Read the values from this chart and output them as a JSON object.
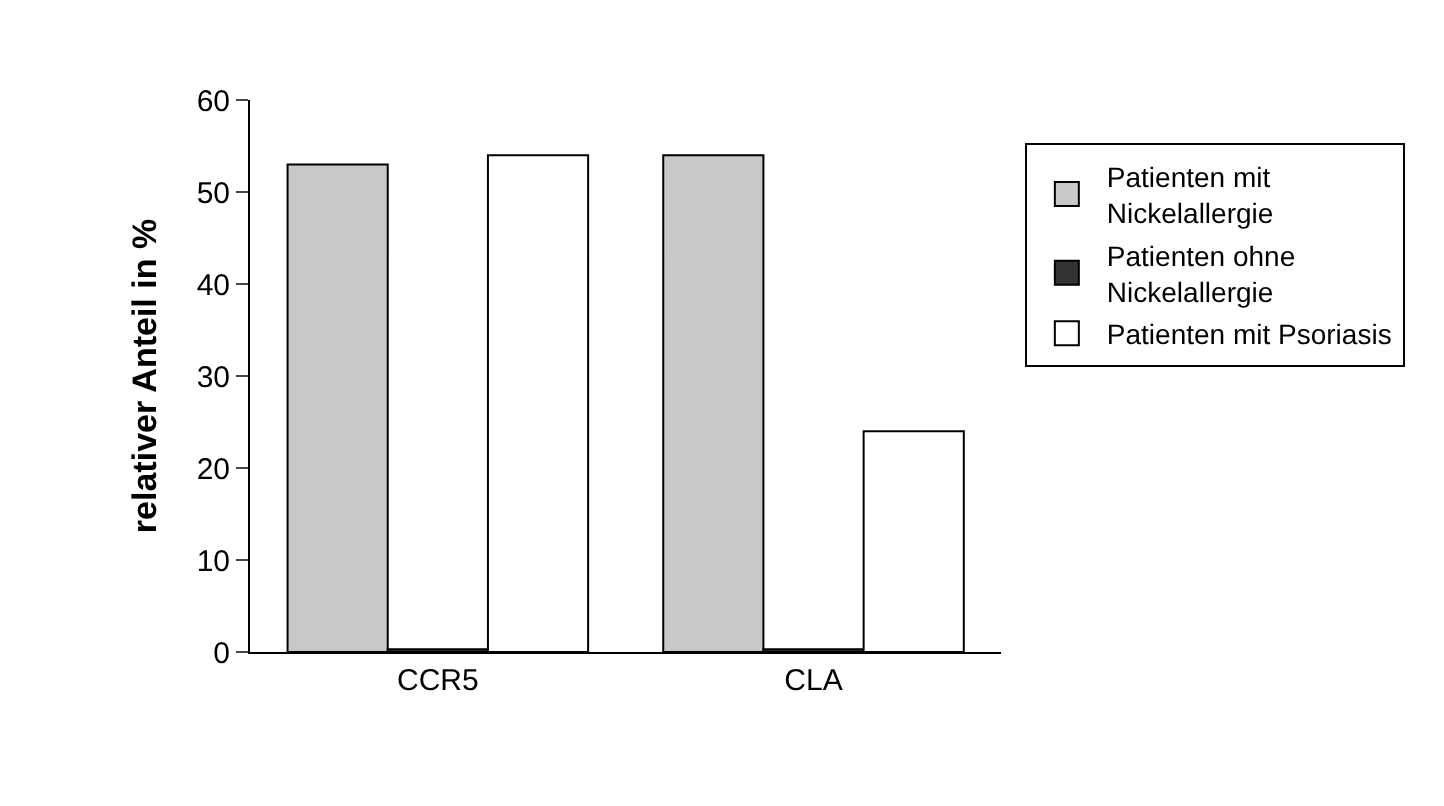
{
  "chart_data": {
    "type": "bar",
    "ylabel": "relativer Anteil in %",
    "categories": [
      "CCR5",
      "CLA"
    ],
    "series": [
      {
        "name": "Patienten mit Nickelallergie",
        "color": "#c8c8c8",
        "values": [
          53,
          54
        ]
      },
      {
        "name": "Patienten ohne Nickelallergie",
        "color": "#333333",
        "values": [
          0.3,
          0.3
        ]
      },
      {
        "name": "Patienten mit Psoriasis",
        "color": "#ffffff",
        "values": [
          54,
          24
        ]
      }
    ],
    "ylim": [
      0,
      60
    ],
    "yticks": [
      0,
      10,
      20,
      30,
      40,
      50,
      60
    ],
    "legend": "right"
  }
}
